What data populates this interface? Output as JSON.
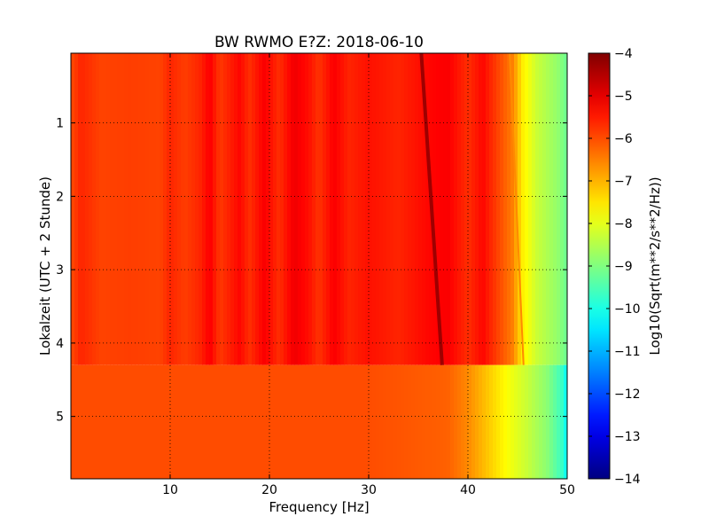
{
  "chart_data": {
    "type": "heatmap",
    "title": "BW RWMO E?Z: 2018-06-10",
    "xlabel": "Frequency [Hz]",
    "ylabel": "Lokalzeit (UTC + 2 Stunde)",
    "xlim": [
      0,
      50
    ],
    "ylim": [
      5.85,
      0.05
    ],
    "xticks": [
      10,
      20,
      30,
      40,
      50
    ],
    "xtick_labels": [
      "10",
      "20",
      "30",
      "40",
      "50"
    ],
    "yticks": [
      1,
      2,
      3,
      4,
      5
    ],
    "ytick_labels": [
      "1",
      "2",
      "3",
      "4",
      "5"
    ],
    "grid": true,
    "colormap": "jet",
    "colorbar": {
      "label": "Log10(Sqrt(m**2/s**2/Hz))",
      "min": -14,
      "max": -4,
      "ticks": [
        -4,
        -5,
        -6,
        -7,
        -8,
        -9,
        -10,
        -11,
        -12,
        -13,
        -14
      ],
      "tick_labels": [
        "−4",
        "−5",
        "−6",
        "−7",
        "−8",
        "−9",
        "−10",
        "−11",
        "−12",
        "−13",
        "−14"
      ]
    },
    "regime_change_time": 4.3,
    "levels_upper": [
      {
        "freq": 0,
        "value": -6.0
      },
      {
        "freq": 1,
        "value": -5.6
      },
      {
        "freq": 3,
        "value": -5.9
      },
      {
        "freq": 6,
        "value": -5.85
      },
      {
        "freq": 9,
        "value": -5.9
      },
      {
        "freq": 10,
        "value": -5.6
      },
      {
        "freq": 11.5,
        "value": -5.85
      },
      {
        "freq": 13,
        "value": -5.6
      },
      {
        "freq": 14,
        "value": -5.2
      },
      {
        "freq": 15,
        "value": -5.8
      },
      {
        "freq": 17,
        "value": -5.3
      },
      {
        "freq": 18,
        "value": -5.7
      },
      {
        "freq": 19.5,
        "value": -5.2
      },
      {
        "freq": 21,
        "value": -5.7
      },
      {
        "freq": 22.5,
        "value": -5.1
      },
      {
        "freq": 24,
        "value": -5.4
      },
      {
        "freq": 25,
        "value": -5.75
      },
      {
        "freq": 26.5,
        "value": -5.2
      },
      {
        "freq": 28,
        "value": -5.6
      },
      {
        "freq": 30,
        "value": -5.4
      },
      {
        "freq": 33,
        "value": -5.6
      },
      {
        "freq": 36,
        "value": -5.3
      },
      {
        "freq": 38,
        "value": -5.2
      },
      {
        "freq": 40,
        "value": -5.7
      },
      {
        "freq": 41.5,
        "value": -5.3
      },
      {
        "freq": 43,
        "value": -5.9
      },
      {
        "freq": 44.5,
        "value": -6.5
      },
      {
        "freq": 45.5,
        "value": -7.6
      },
      {
        "freq": 47,
        "value": -8.3
      },
      {
        "freq": 49,
        "value": -8.8
      },
      {
        "freq": 50,
        "value": -9.2
      }
    ],
    "levels_lower": [
      {
        "freq": 0,
        "value": -6.0
      },
      {
        "freq": 30,
        "value": -6.0
      },
      {
        "freq": 38,
        "value": -6.2
      },
      {
        "freq": 40,
        "value": -6.6
      },
      {
        "freq": 42,
        "value": -7.2
      },
      {
        "freq": 44,
        "value": -7.8
      },
      {
        "freq": 46,
        "value": -8.3
      },
      {
        "freq": 48,
        "value": -8.9
      },
      {
        "freq": 49.5,
        "value": -9.7
      },
      {
        "freq": 50,
        "value": -10.3
      }
    ],
    "line_features": [
      {
        "start_freq": 35.3,
        "start_time": 0.05,
        "end_freq": 37.4,
        "end_time": 4.3,
        "value": -4.3
      },
      {
        "start_freq": 44.2,
        "start_time": 0.05,
        "end_freq": 45.6,
        "end_time": 4.3,
        "value": -6.6
      }
    ]
  }
}
